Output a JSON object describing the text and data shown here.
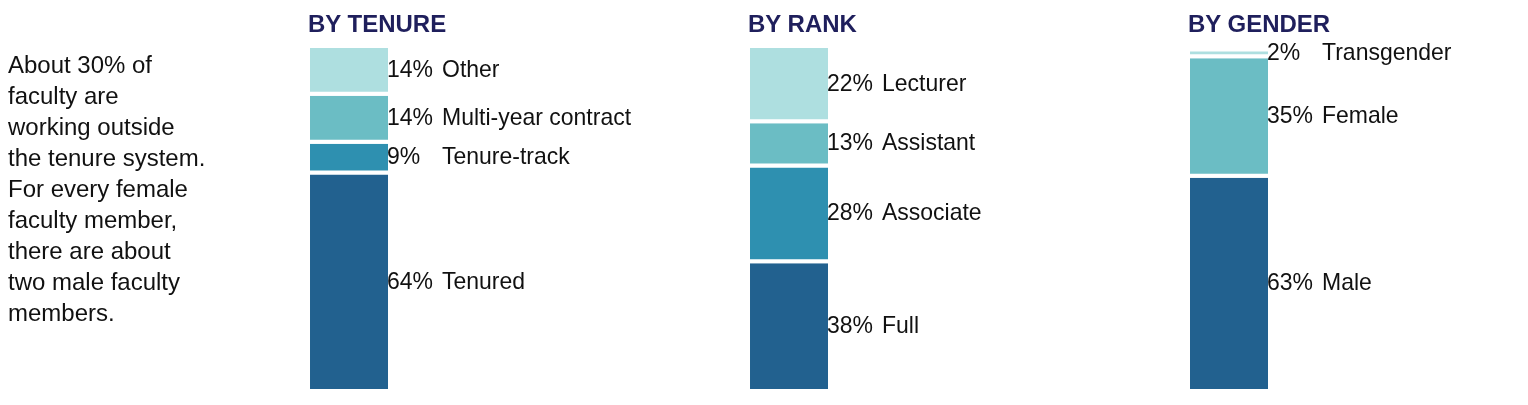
{
  "chart_data": {
    "type": "bar",
    "stacked": true,
    "categories": [
      "BY TENURE",
      "BY RANK",
      "BY GENDER"
    ],
    "annotations": [
      "About 30% of faculty are working outside the tenure system. For every female faculty member, there are about two male faculty members."
    ],
    "series": [
      {
        "name": "Tenured",
        "color": "#22618f",
        "values": [
          64,
          null,
          null
        ],
        "value_labels": [
          "64%",
          null,
          null
        ]
      },
      {
        "name": "Tenure-track",
        "color": "#2e90b0",
        "values": [
          9,
          null,
          null
        ],
        "value_labels": [
          "9%",
          null,
          null
        ]
      },
      {
        "name": "Multi-year contract",
        "color": "#6bbdc4",
        "values": [
          14,
          null,
          null
        ],
        "value_labels": [
          "14%",
          null,
          null
        ]
      },
      {
        "name": "Other",
        "color": "#aedfe0",
        "values": [
          14,
          null,
          null
        ],
        "value_labels": [
          "14%",
          null,
          null
        ]
      },
      {
        "name": "Full",
        "color": "#22618f",
        "values": [
          null,
          38,
          null
        ],
        "value_labels": [
          null,
          "38%",
          null
        ]
      },
      {
        "name": "Associate",
        "color": "#2e90b0",
        "values": [
          null,
          28,
          null
        ],
        "value_labels": [
          null,
          "28%",
          null
        ]
      },
      {
        "name": "Assistant",
        "color": "#6bbdc4",
        "values": [
          null,
          13,
          null
        ],
        "value_labels": [
          null,
          "13%",
          null
        ]
      },
      {
        "name": "Lecturer",
        "color": "#aedfe0",
        "values": [
          null,
          22,
          null
        ],
        "value_labels": [
          null,
          "22%",
          null
        ]
      },
      {
        "name": "Male",
        "color": "#22618f",
        "values": [
          null,
          null,
          63
        ],
        "value_labels": [
          null,
          null,
          "63%"
        ]
      },
      {
        "name": "Female",
        "color": "#6bbdc4",
        "values": [
          null,
          null,
          35
        ],
        "value_labels": [
          null,
          null,
          "35%"
        ]
      },
      {
        "name": "Transgender",
        "color": "#aedfe0",
        "values": [
          null,
          null,
          2
        ],
        "value_labels": [
          null,
          null,
          "2%"
        ]
      }
    ]
  }
}
